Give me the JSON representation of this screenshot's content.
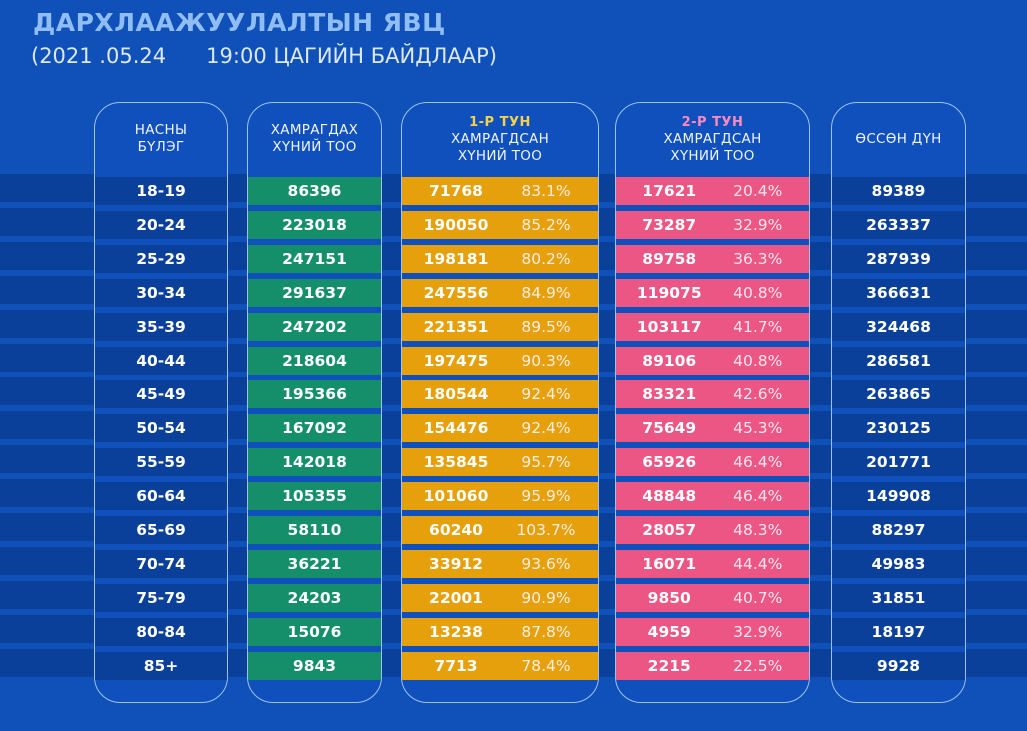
{
  "header": {
    "title": "ДАРХЛААЖУУЛАЛТЫН ЯВЦ",
    "subtitle": "(2021 .05.24      19:00 ЦАГИЙН БАЙДЛААР)"
  },
  "columns": {
    "age_group": {
      "line1": "НАСНЫ",
      "line2": "БҮЛЭГ"
    },
    "eligible": {
      "line1": "ХАМРАГДАХ",
      "line2": "ХҮНИЙ ТОО"
    },
    "dose1": {
      "dose": "1-Р ТУН",
      "line1": "ХАМРАГДСАН",
      "line2": "ХҮНИЙ ТОО"
    },
    "dose2": {
      "dose": "2-Р ТУН",
      "line1": "ХАМРАГДСАН",
      "line2": "ХҮНИЙ ТОО"
    },
    "cumulative": {
      "line1": "ӨССӨН ДҮН"
    }
  },
  "colors": {
    "background": "#0f51b8",
    "eligible": "#148f6a",
    "dose1": "#e5a00c",
    "dose2": "#ec5684",
    "title": "#8fbdf4"
  },
  "rows": [
    {
      "age": "18-19",
      "eligible": "86396",
      "dose1": "71768",
      "dose1_pct": "83.1%",
      "dose2": "17621",
      "dose2_pct": "20.4%",
      "cumulative": "89389"
    },
    {
      "age": "20-24",
      "eligible": "223018",
      "dose1": "190050",
      "dose1_pct": "85.2%",
      "dose2": "73287",
      "dose2_pct": "32.9%",
      "cumulative": "263337"
    },
    {
      "age": "25-29",
      "eligible": "247151",
      "dose1": "198181",
      "dose1_pct": "80.2%",
      "dose2": "89758",
      "dose2_pct": "36.3%",
      "cumulative": "287939"
    },
    {
      "age": "30-34",
      "eligible": "291637",
      "dose1": "247556",
      "dose1_pct": "84.9%",
      "dose2": "119075",
      "dose2_pct": "40.8%",
      "cumulative": "366631"
    },
    {
      "age": "35-39",
      "eligible": "247202",
      "dose1": "221351",
      "dose1_pct": "89.5%",
      "dose2": "103117",
      "dose2_pct": "41.7%",
      "cumulative": "324468"
    },
    {
      "age": "40-44",
      "eligible": "218604",
      "dose1": "197475",
      "dose1_pct": "90.3%",
      "dose2": "89106",
      "dose2_pct": "40.8%",
      "cumulative": "286581"
    },
    {
      "age": "45-49",
      "eligible": "195366",
      "dose1": "180544",
      "dose1_pct": "92.4%",
      "dose2": "83321",
      "dose2_pct": "42.6%",
      "cumulative": "263865"
    },
    {
      "age": "50-54",
      "eligible": "167092",
      "dose1": "154476",
      "dose1_pct": "92.4%",
      "dose2": "75649",
      "dose2_pct": "45.3%",
      "cumulative": "230125"
    },
    {
      "age": "55-59",
      "eligible": "142018",
      "dose1": "135845",
      "dose1_pct": "95.7%",
      "dose2": "65926",
      "dose2_pct": "46.4%",
      "cumulative": "201771"
    },
    {
      "age": "60-64",
      "eligible": "105355",
      "dose1": "101060",
      "dose1_pct": "95.9%",
      "dose2": "48848",
      "dose2_pct": "46.4%",
      "cumulative": "149908"
    },
    {
      "age": "65-69",
      "eligible": "58110",
      "dose1": "60240",
      "dose1_pct": "103.7%",
      "dose2": "28057",
      "dose2_pct": "48.3%",
      "cumulative": "88297"
    },
    {
      "age": "70-74",
      "eligible": "36221",
      "dose1": "33912",
      "dose1_pct": "93.6%",
      "dose2": "16071",
      "dose2_pct": "44.4%",
      "cumulative": "49983"
    },
    {
      "age": "75-79",
      "eligible": "24203",
      "dose1": "22001",
      "dose1_pct": "90.9%",
      "dose2": "9850",
      "dose2_pct": "40.7%",
      "cumulative": "31851"
    },
    {
      "age": "80-84",
      "eligible": "15076",
      "dose1": "13238",
      "dose1_pct": "87.8%",
      "dose2": "4959",
      "dose2_pct": "32.9%",
      "cumulative": "18197"
    },
    {
      "age": "85+",
      "eligible": "9843",
      "dose1": "7713",
      "dose1_pct": "78.4%",
      "dose2": "2215",
      "dose2_pct": "22.5%",
      "cumulative": "9928"
    }
  ]
}
